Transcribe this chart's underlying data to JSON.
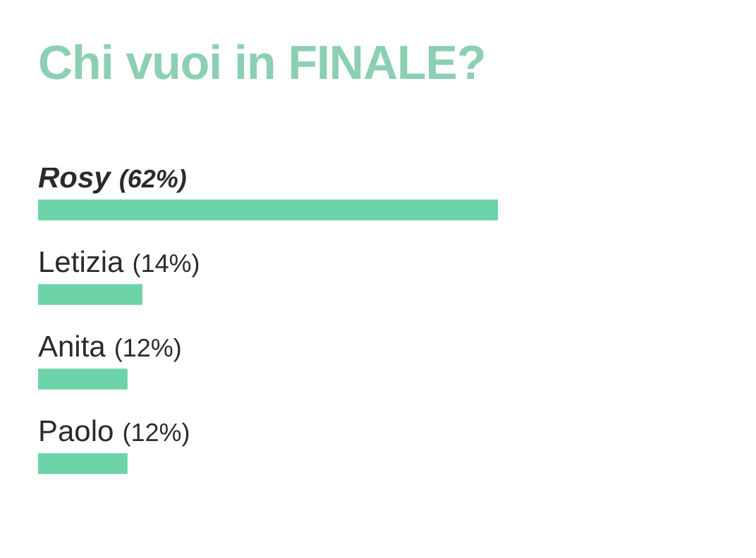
{
  "chart_data": {
    "type": "bar",
    "orientation": "horizontal",
    "title": "Chi vuoi in FINALE?",
    "categories": [
      "Rosy",
      "Letizia",
      "Anita",
      "Paolo"
    ],
    "values": [
      62,
      14,
      12,
      12
    ],
    "value_labels": [
      "(62%)",
      "(14%)",
      "(12%)",
      "(12%)"
    ],
    "color": "#6dd3a8",
    "legend": false
  }
}
